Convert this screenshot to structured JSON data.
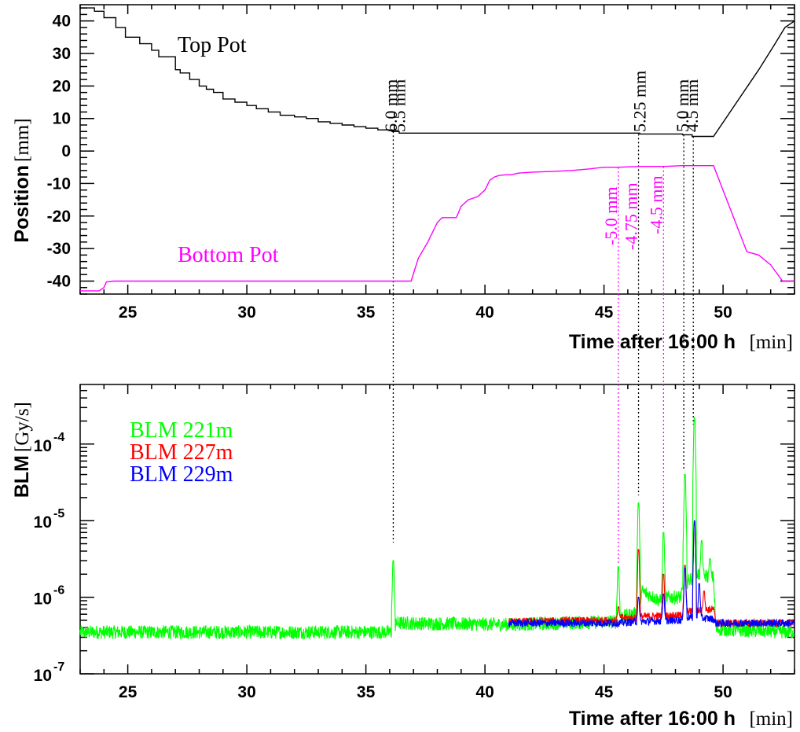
{
  "colors": {
    "top": "#000000",
    "bottom": "#ff00ff",
    "blm221": "#00ff00",
    "blm227": "#ff0000",
    "blm229": "#0000ff",
    "axis": "#000000"
  },
  "chart_data": [
    {
      "type": "line",
      "title": "",
      "xlabel": "Time after 16:00 h",
      "xunit": "[min]",
      "ylabel": "Position",
      "yunit": "[mm]",
      "xlim": [
        23.0,
        53.0
      ],
      "ylim": [
        -44.0,
        45.0
      ],
      "x_ticks": [
        25,
        30,
        35,
        40,
        45,
        50
      ],
      "y_ticks": [
        40,
        30,
        20,
        10,
        0,
        -10,
        -20,
        -30,
        -40
      ],
      "grid": false,
      "series": [
        {
          "name": "Top Pot",
          "color_key": "top",
          "x": [
            23.0,
            23.6,
            23.6,
            24.0,
            24.0,
            24.5,
            24.5,
            24.9,
            24.9,
            25.5,
            25.5,
            26.0,
            26.0,
            26.3,
            26.3,
            27.0,
            27.0,
            27.2,
            27.2,
            27.6,
            27.6,
            28.0,
            28.0,
            28.3,
            28.3,
            28.6,
            28.6,
            29.0,
            29.0,
            29.5,
            29.5,
            30.0,
            30.0,
            30.4,
            30.4,
            30.9,
            30.9,
            31.4,
            31.4,
            32.0,
            32.0,
            32.5,
            32.5,
            33.0,
            33.0,
            33.5,
            33.5,
            34.0,
            34.0,
            34.5,
            34.5,
            35.0,
            35.0,
            35.5,
            35.5,
            36.1,
            36.1,
            36.4,
            36.4,
            37.0,
            45.0,
            46.5,
            46.5,
            48.3,
            48.3,
            48.7,
            48.7,
            49.6,
            51.5,
            51.5,
            52.1,
            52.1,
            52.6,
            52.6,
            53.0
          ],
          "y": [
            44,
            44,
            43,
            43,
            41,
            41,
            38,
            38,
            35,
            35,
            33,
            33,
            31,
            31,
            29,
            29,
            25,
            25,
            24,
            24,
            22,
            22,
            20,
            20,
            19,
            19,
            18,
            18,
            16,
            16,
            15,
            15,
            14,
            14,
            13,
            13,
            12,
            12,
            11,
            11,
            10.5,
            10.5,
            10,
            10,
            9,
            9,
            8.5,
            8.5,
            8,
            8,
            7.5,
            7.5,
            7,
            7,
            6.5,
            6.5,
            6.0,
            6.0,
            5.5,
            5.5,
            5.5,
            5.5,
            5.25,
            5.25,
            5.0,
            5.0,
            4.5,
            4.5,
            25,
            25,
            32,
            32,
            38,
            38,
            40
          ]
        },
        {
          "name": "Bottom Pot",
          "color_key": "bottom",
          "x": [
            23.0,
            23.8,
            24.0,
            24.1,
            24.4,
            36.9,
            37.2,
            37.6,
            38.0,
            38.2,
            38.8,
            39.0,
            39.3,
            39.7,
            40.0,
            40.2,
            40.4,
            40.6,
            40.9,
            41.1,
            41.4,
            42.0,
            42.8,
            43.6,
            44.4,
            45.0,
            45.6,
            46.5,
            47.5,
            48.3,
            48.7,
            49.6,
            51.0,
            51.5,
            52.0,
            52.5,
            53.0
          ],
          "y": [
            -43,
            -43,
            -42,
            -40.3,
            -40,
            -40,
            -33,
            -28,
            -22,
            -20.5,
            -20.5,
            -17,
            -15,
            -14,
            -12,
            -9,
            -8,
            -7.5,
            -7.3,
            -7.3,
            -6.8,
            -6.5,
            -6.3,
            -6,
            -5.5,
            -5,
            -5.0,
            -4.75,
            -4.75,
            -4.5,
            -4.5,
            -4.5,
            -31,
            -32,
            -35,
            -40,
            -40
          ]
        }
      ],
      "annotations": {
        "top": [
          {
            "text": "6.0 mm",
            "x": 36.1
          },
          {
            "text": "5.5 mm",
            "x": 36.45
          },
          {
            "text": "5.25 mm",
            "x": 46.55
          },
          {
            "text": "5.0 mm",
            "x": 48.35
          },
          {
            "text": "4.5 mm",
            "x": 48.75
          }
        ],
        "bottom": [
          {
            "text": "-5.0 mm",
            "x": 45.6
          },
          {
            "text": "-4.75 mm",
            "x": 46.45
          },
          {
            "text": "-4.5 mm",
            "x": 47.5
          }
        ]
      }
    },
    {
      "type": "line",
      "title": "",
      "xlabel": "Time after 16:00 h",
      "xunit": "[min]",
      "ylabel": "BLM",
      "yunit": "[Gy/s]",
      "yscale": "log",
      "xlim": [
        23.0,
        53.0
      ],
      "ylim": [
        1e-07,
        0.0006
      ],
      "x_ticks": [
        25,
        30,
        35,
        40,
        45,
        50
      ],
      "y_ticks": [
        1e-07,
        1e-06,
        1e-05,
        0.0001
      ],
      "y_tick_base": "10",
      "y_tick_exps": [
        "-7",
        "-6",
        "-5",
        "-4"
      ],
      "grid": false,
      "series": [
        {
          "name": "BLM 221m",
          "color_key": "blm221",
          "baseline": [
            [
              23.0,
              3.5e-07
            ],
            [
              36.15,
              3.5e-07
            ],
            [
              36.3,
              4.6e-07
            ],
            [
              41.0,
              4.4e-07
            ],
            [
              45.5,
              4.8e-07
            ],
            [
              45.7,
              5.5e-07
            ],
            [
              46.4,
              6.2e-07
            ],
            [
              46.6,
              1.2e-06
            ],
            [
              47.5,
              8.5e-07
            ],
            [
              47.6,
              1e-06
            ],
            [
              48.2,
              1e-06
            ],
            [
              48.5,
              1.6e-06
            ],
            [
              48.9,
              2e-06
            ],
            [
              49.6,
              1.8e-06
            ],
            [
              49.7,
              3.8e-07
            ],
            [
              53.0,
              3.5e-07
            ]
          ],
          "noise": 0.09,
          "spikes": [
            [
              36.15,
              3e-06
            ],
            [
              45.6,
              2.5e-06
            ],
            [
              46.45,
              1.7e-05
            ],
            [
              47.5,
              7e-06
            ],
            [
              48.4,
              4e-05
            ],
            [
              48.8,
              0.00022
            ],
            [
              49.1,
              5.5e-06
            ],
            [
              49.45,
              3.2e-06
            ]
          ]
        },
        {
          "name": "BLM 227m",
          "color_key": "blm227",
          "baseline": [
            [
              41.0,
              4.8e-07
            ],
            [
              45.5,
              5e-07
            ],
            [
              45.7,
              5.4e-07
            ],
            [
              46.4,
              5.3e-07
            ],
            [
              46.6,
              5.6e-07
            ],
            [
              48.2,
              5.8e-07
            ],
            [
              48.5,
              6.5e-07
            ],
            [
              49.6,
              7e-07
            ],
            [
              49.7,
              4.6e-07
            ],
            [
              53.0,
              4.6e-07
            ]
          ],
          "noise": 0.05,
          "spikes": [
            [
              45.6,
              7.5e-07
            ],
            [
              46.45,
              4.2e-06
            ],
            [
              47.5,
              2e-06
            ],
            [
              48.4,
              2.6e-06
            ],
            [
              48.8,
              9.5e-06
            ],
            [
              49.2,
              1.2e-06
            ]
          ]
        },
        {
          "name": "BLM 229m",
          "color_key": "blm229",
          "baseline": [
            [
              41.0,
              4.6e-07
            ],
            [
              45.5,
              4.6e-07
            ],
            [
              46.4,
              4.8e-07
            ],
            [
              48.2,
              5e-07
            ],
            [
              48.5,
              5.5e-07
            ],
            [
              49.6,
              5.2e-07
            ],
            [
              49.7,
              4.6e-07
            ],
            [
              53.0,
              4.6e-07
            ]
          ],
          "noise": 0.05,
          "spikes": [
            [
              46.45,
              1e-06
            ],
            [
              47.5,
              1.1e-06
            ],
            [
              48.4,
              2.4e-06
            ],
            [
              48.8,
              1e-05
            ],
            [
              49.0,
              1.5e-06
            ]
          ]
        }
      ],
      "legend": {
        "placement": "top-left",
        "entries": [
          "BLM 221m",
          "BLM 227m",
          "BLM 229m"
        ]
      },
      "marker_lines": {
        "black_x": [
          36.15,
          46.45,
          48.35,
          48.75
        ],
        "magenta_x": [
          45.6,
          47.5
        ]
      }
    }
  ]
}
